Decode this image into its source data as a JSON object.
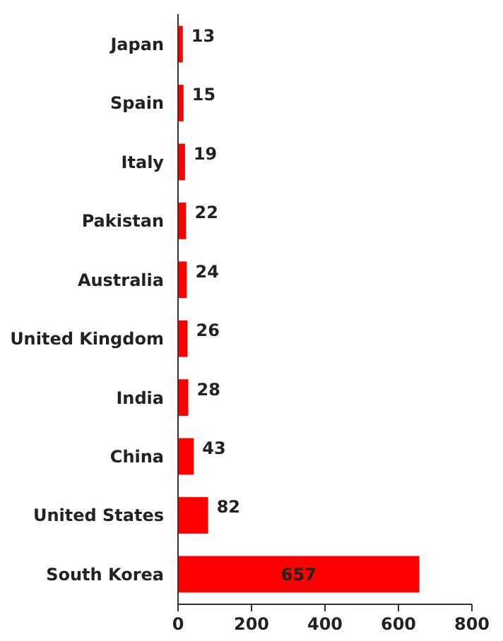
{
  "chart_data": {
    "type": "bar",
    "orientation": "horizontal",
    "categories": [
      "Japan",
      "Spain",
      "Italy",
      "Pakistan",
      "Australia",
      "United Kingdom",
      "India",
      "China",
      "United States",
      "South Korea"
    ],
    "values": [
      13,
      15,
      19,
      22,
      24,
      26,
      28,
      43,
      82,
      657
    ],
    "color": "#ff0000",
    "xlim": [
      0,
      800
    ],
    "xticks": [
      0,
      200,
      400,
      600,
      800
    ],
    "data_labels": true,
    "grid": false
  }
}
